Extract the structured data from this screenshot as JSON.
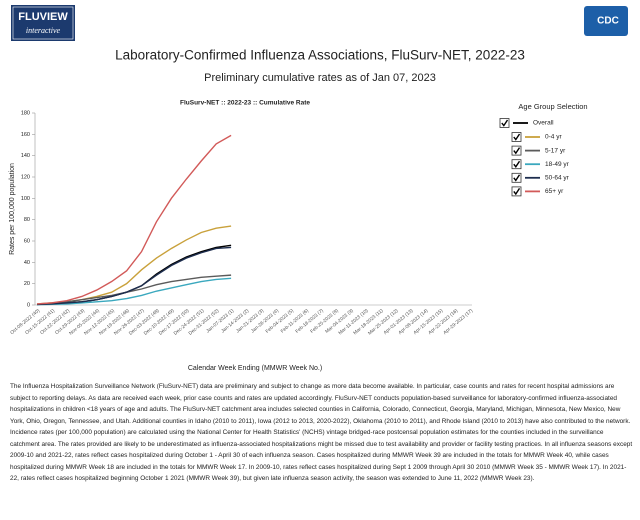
{
  "header": {
    "logo_title": "FLUVIEW",
    "logo_subtitle": "interactive",
    "agency": "CDC"
  },
  "chart_data": {
    "type": "line",
    "title": "Laboratory-Confirmed Influenza Associations, FluSurv-NET, 2022-23",
    "subtitle": "Preliminary cumulative rates as of Jan 07, 2023",
    "chart_title": "FluSurv-NET :: 2022-23 :: Cumulative Rate",
    "x_label": "Calendar Week Ending (MMWR Week No.)",
    "y_label": "Rates per 100,000 population",
    "legend_title": "Age Group Selection",
    "categories": [
      "Oct-08-2022 (40)",
      "Oct-15-2022 (41)",
      "Oct-22-2022 (42)",
      "Oct-29-2022 (43)",
      "Nov-05-2022 (44)",
      "Nov-12-2022 (45)",
      "Nov-19-2022 (46)",
      "Nov-26-2022 (47)",
      "Dec-03-2022 (48)",
      "Dec-10-2022 (49)",
      "Dec-17-2022 (50)",
      "Dec-24-2022 (51)",
      "Dec-31-2022 (52)",
      "Jan-07-2023 (1)",
      "Jan-14-2023 (2)",
      "Jan-21-2023 (3)",
      "Jan-28-2023 (4)",
      "Feb-04-2023 (5)",
      "Feb-11-2023 (6)",
      "Feb-18-2023 (7)",
      "Feb-25-2023 (8)",
      "Mar-04-2023 (9)",
      "Mar-11-2023 (10)",
      "Mar-18-2023 (11)",
      "Mar-25-2023 (12)",
      "Apr-01-2023 (13)",
      "Apr-08-2023 (14)",
      "Apr-15-2023 (15)",
      "Apr-22-2023 (16)",
      "Apr-29-2023 (17)"
    ],
    "series": [
      {
        "name": "Overall",
        "color": "#000000",
        "values": [
          0.5,
          1,
          2,
          3,
          5,
          8,
          12,
          18,
          29,
          38,
          45,
          50,
          54,
          56,
          null,
          null,
          null,
          null,
          null,
          null,
          null,
          null,
          null,
          null,
          null,
          null,
          null,
          null,
          null,
          null
        ]
      },
      {
        "name": "0-4 yr",
        "color": "#c9a13b",
        "values": [
          1,
          2,
          3,
          5,
          8,
          12,
          20,
          33,
          44,
          53,
          61,
          68,
          72,
          74,
          null,
          null,
          null,
          null,
          null,
          null,
          null,
          null,
          null,
          null,
          null,
          null,
          null,
          null,
          null,
          null
        ]
      },
      {
        "name": "5-17 yr",
        "color": "#5b5b5b",
        "values": [
          0.5,
          1.5,
          3,
          5,
          7,
          9,
          12,
          15,
          19,
          22,
          24,
          26,
          27,
          28,
          null,
          null,
          null,
          null,
          null,
          null,
          null,
          null,
          null,
          null,
          null,
          null,
          null,
          null,
          null,
          null
        ]
      },
      {
        "name": "18-49 yr",
        "color": "#3aa8be",
        "values": [
          0.3,
          0.6,
          1,
          2,
          3,
          4,
          6,
          9,
          13,
          16,
          19,
          22,
          24,
          25,
          null,
          null,
          null,
          null,
          null,
          null,
          null,
          null,
          null,
          null,
          null,
          null,
          null,
          null,
          null,
          null
        ]
      },
      {
        "name": "50-64 yr",
        "color": "#1d2d4e",
        "values": [
          0.5,
          1,
          2,
          3,
          5,
          8,
          12,
          18,
          28,
          37,
          44,
          49,
          53,
          54,
          null,
          null,
          null,
          null,
          null,
          null,
          null,
          null,
          null,
          null,
          null,
          null,
          null,
          null,
          null,
          null
        ]
      },
      {
        "name": "65+ yr",
        "color": "#d25a59",
        "values": [
          1,
          2,
          4,
          8,
          14,
          22,
          32,
          50,
          78,
          100,
          118,
          135,
          151,
          159,
          null,
          null,
          null,
          null,
          null,
          null,
          null,
          null,
          null,
          null,
          null,
          null,
          null,
          null,
          null,
          null
        ]
      }
    ],
    "ylim": [
      0,
      180
    ],
    "yticks": [
      0,
      20,
      40,
      60,
      80,
      100,
      120,
      140,
      160,
      180
    ],
    "grid": false,
    "legend_position": "right"
  },
  "footnote": "The Influenza Hospitalization Surveillance Network (FluSurv-NET) data are preliminary and subject to change as more data become available. In particular, case counts and rates for recent hospital admissions are subject to reporting delays. As data are received each week, prior case counts and rates are updated accordingly. FluSurv-NET conducts population-based surveillance for laboratory-confirmed influenza-associated hospitalizations in children <18 years of age and adults. The FluSurv-NET catchment area includes selected counties in California, Colorado, Connecticut, Georgia, Maryland, Michigan, Minnesota, New Mexico, New York, Ohio, Oregon, Tennessee, and Utah. Additional counties in Idaho (2010 to 2011), Iowa (2012 to 2013, 2020-2022), Oklahoma (2010 to 2011), and Rhode Island (2010 to 2013) have also contributed to the network. Incidence rates (per 100,000 population) are calculated using the National Center for Health Statistics' (NCHS) vintage bridged-race postcensal population estimates for the counties included in the surveillance catchment area. The rates provided are likely to be underestimated as influenza-associated hospitalizations might be missed due to test availability and provider or facility testing practices. In all influenza seasons except 2009-10 and 2021-22, rates reflect cases hospitalized during October 1 - April 30 of each influenza season. Cases hospitalized during MMWR Week 39 are included in the totals for MMWR Week 40, while cases hospitalized during MMWR Week 18 are included in the totals for MMWR Week 17. In 2009-10, rates reflect cases hospitalized during Sept 1 2009 through April 30 2010 (MMWR Week 35 - MMWR Week 17). In 2021-22, rates reflect cases hospitalized beginning October 1 2021 (MMWR Week 39), but given late influenza season activity, the season was extended to June 11, 2022 (MMWR Week 23)."
}
